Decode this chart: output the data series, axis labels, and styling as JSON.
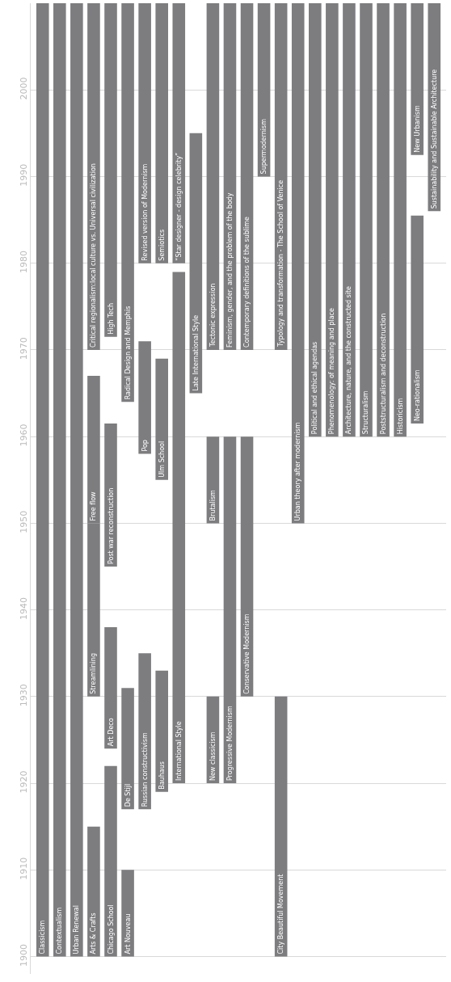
{
  "chart_data": {
    "type": "bar",
    "categories": [
      null,
      null,
      null,
      null,
      null,
      null,
      null,
      null,
      null,
      null,
      null,
      null,
      null,
      null,
      null,
      null,
      null,
      null,
      null,
      null,
      null,
      null,
      null,
      null
    ],
    "series": [
      {
        "color": "#7d7d80",
        "base": [
          1900,
          1900,
          1900,
          1900,
          1900,
          1900,
          1917,
          1919,
          1920,
          1965,
          1920,
          1920,
          1930,
          1990,
          1900,
          1950,
          1960,
          1960,
          1960,
          1960,
          1960,
          1960,
          1961.5,
          1986
        ],
        "values": [
          110,
          110,
          110,
          15,
          22,
          10,
          18,
          14,
          59,
          30,
          10,
          40,
          30,
          20,
          30,
          60,
          50,
          50,
          50,
          50,
          50,
          50,
          24,
          24
        ],
        "value_labels": [
          "Classicism",
          "Contextualism",
          "Urban Renewal",
          "Arts & Crafts",
          "Chicago School",
          "Art Nouveau",
          "Russian constructivism",
          "Bauhaus",
          "International Style",
          "Late International Style",
          "New classicism",
          "Progressive Modernism",
          "Conservative Modernism",
          "Supermodernism",
          "City Beautiful Movement",
          "Urban theory after modernism",
          "Political and ethical agendas",
          "Phenomenology: of meaning and place",
          "Architecture, nature, and the constructed site",
          "Structuralism",
          "Poststructuralism and deconstruction",
          "Historicism",
          "Neo-rationalism",
          "Sustainability and Sustainable Architecture"
        ]
      },
      {
        "color": "#7d7d80",
        "base": [
          null,
          null,
          null,
          1930,
          1924,
          1917,
          1958,
          1955,
          1980,
          null,
          1950,
          1970,
          1970,
          null,
          1970,
          null,
          null,
          null,
          null,
          null,
          null,
          null,
          1992.5,
          null
        ],
        "values": [
          null,
          null,
          null,
          20,
          14,
          14,
          13,
          14,
          30,
          null,
          10,
          40,
          40,
          null,
          40,
          null,
          null,
          null,
          null,
          null,
          null,
          null,
          17.5,
          null
        ],
        "value_labels": [
          null,
          null,
          null,
          "Streamlining",
          "Art Deco",
          "De Stijl",
          "Pop",
          "Ulm School",
          "“Star designer - design celebrity”",
          null,
          "Brutalism",
          "Feminism, gender, and the problem of the body",
          "Contemporary definitions of the sublime",
          null,
          "Typology and transformation - The School of Venice",
          null,
          null,
          null,
          null,
          null,
          null,
          null,
          "New Urbanism",
          null
        ]
      },
      {
        "color": "#7d7d80",
        "base": [
          null,
          null,
          null,
          1950,
          1945,
          1964,
          1980,
          1980,
          null,
          null,
          1970,
          null,
          null,
          null,
          null,
          null,
          null,
          null,
          null,
          null,
          null,
          null,
          null,
          null
        ],
        "values": [
          null,
          null,
          null,
          17,
          16.5,
          46,
          30,
          30,
          null,
          null,
          40,
          null,
          null,
          null,
          null,
          null,
          null,
          null,
          null,
          null,
          null,
          null,
          null,
          null
        ],
        "value_labels": [
          null,
          null,
          null,
          "Free flow",
          "Post war reconstruction",
          "Radical Design and Memphis",
          "Revised version of Modernism",
          "Semiotics",
          null,
          null,
          "Tectonic expression",
          null,
          null,
          null,
          null,
          null,
          null,
          null,
          null,
          null,
          null,
          null,
          null,
          null
        ]
      },
      {
        "color": "#7d7d80",
        "base": [
          null,
          null,
          null,
          1970,
          1971.5,
          null,
          null,
          null,
          null,
          null,
          null,
          null,
          null,
          null,
          null,
          null,
          null,
          null,
          null,
          null,
          null,
          null,
          null,
          null
        ],
        "values": [
          null,
          null,
          null,
          40,
          38.5,
          null,
          null,
          null,
          null,
          null,
          null,
          null,
          null,
          null,
          null,
          null,
          null,
          null,
          null,
          null,
          null,
          null,
          null,
          null
        ],
        "value_labels": [
          null,
          null,
          null,
          "Critical regionalism:local culture vs. Universal civilization",
          "High Tech",
          null,
          null,
          null,
          null,
          null,
          null,
          null,
          null,
          null,
          null,
          null,
          null,
          null,
          null,
          null,
          null,
          null,
          null,
          null
        ]
      }
    ],
    "ylim": [
      1898,
      2010
    ],
    "yticks": [
      1900,
      1910,
      1920,
      1930,
      1940,
      1950,
      1960,
      1970,
      1980,
      1990,
      2000
    ],
    "grid": "y",
    "tick_labels": "y"
  }
}
